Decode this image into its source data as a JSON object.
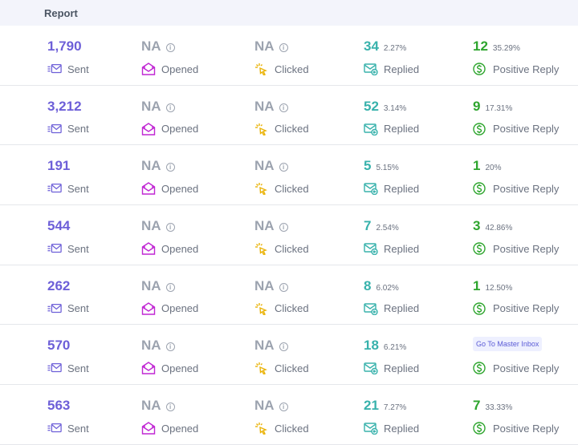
{
  "header": {
    "title": "Report"
  },
  "labels": {
    "sent": "Sent",
    "opened": "Opened",
    "clicked": "Clicked",
    "replied": "Replied",
    "positive_reply": "Positive Reply",
    "na": "NA",
    "info_glyph": "i"
  },
  "rows": [
    {
      "sent": "1,790",
      "replied": "34",
      "replied_pct": "2.27%",
      "positive": "12",
      "positive_pct": "35.29%"
    },
    {
      "sent": "3,212",
      "replied": "52",
      "replied_pct": "3.14%",
      "positive": "9",
      "positive_pct": "17.31%"
    },
    {
      "sent": "191",
      "replied": "5",
      "replied_pct": "5.15%",
      "positive": "1",
      "positive_pct": "20%"
    },
    {
      "sent": "544",
      "replied": "7",
      "replied_pct": "2.54%",
      "positive": "3",
      "positive_pct": "42.86%"
    },
    {
      "sent": "262",
      "replied": "8",
      "replied_pct": "6.02%",
      "positive": "1",
      "positive_pct": "12.50%"
    },
    {
      "sent": "570",
      "replied": "18",
      "replied_pct": "6.21%",
      "positive_action": "Go To Master Inbox"
    },
    {
      "sent": "563",
      "replied": "21",
      "replied_pct": "7.27%",
      "positive": "7",
      "positive_pct": "33.33%"
    }
  ],
  "colors": {
    "sent": "#6d5fd8",
    "opened": "#c026d3",
    "clicked": "#eab308",
    "replied": "#38b2ac",
    "positive": "#2ea52e"
  },
  "icons": {
    "sent": "envelope-send-icon",
    "opened": "envelope-open-icon",
    "clicked": "cursor-click-icon",
    "replied": "envelope-reply-icon",
    "positive": "dollar-circle-icon",
    "info": "info-circle-icon"
  }
}
